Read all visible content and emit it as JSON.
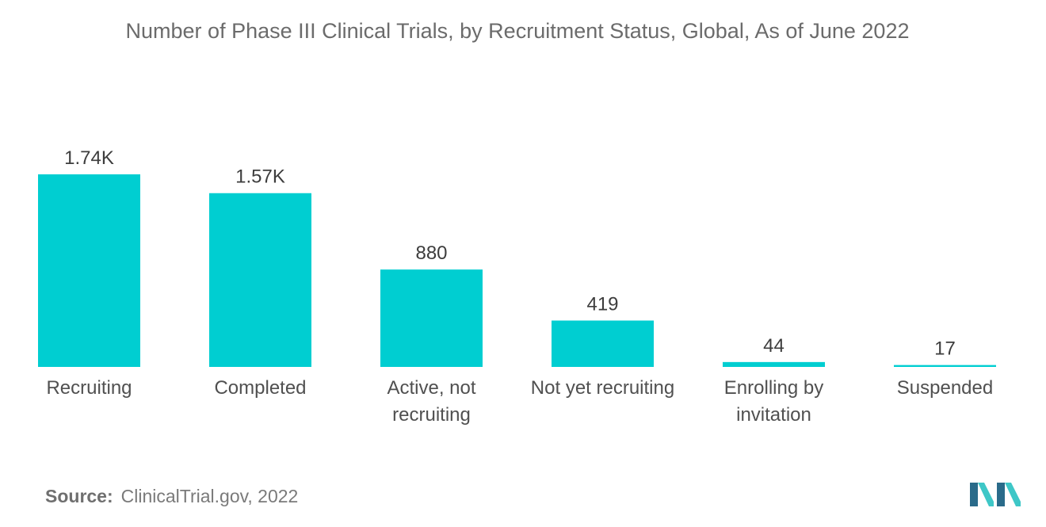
{
  "chart_data": {
    "type": "bar",
    "title": "Number of Phase III Clinical Trials, by Recruitment Status, Global, As of June 2022",
    "categories": [
      [
        "Recruiting"
      ],
      [
        "Completed"
      ],
      [
        "Active, not",
        "recruiting"
      ],
      [
        "Not yet recruiting"
      ],
      [
        "Enrolling by",
        "invitation"
      ],
      [
        "Suspended"
      ]
    ],
    "values": [
      1740,
      1570,
      880,
      419,
      44,
      17
    ],
    "data_labels": [
      "1.74K",
      "1.57K",
      "880",
      "419",
      "44",
      "17"
    ],
    "xlabel": "",
    "ylabel": "",
    "ylim": [
      0,
      1740
    ],
    "grid": false,
    "legend": "none",
    "bar_color": "#00ced1"
  },
  "source": {
    "label": "Source:",
    "text": "ClinicalTrial.gov, 2022"
  },
  "logo": {
    "icon": "mordor-intelligence-logo",
    "colors": [
      "#2a6b8a",
      "#3ec7c7"
    ]
  }
}
